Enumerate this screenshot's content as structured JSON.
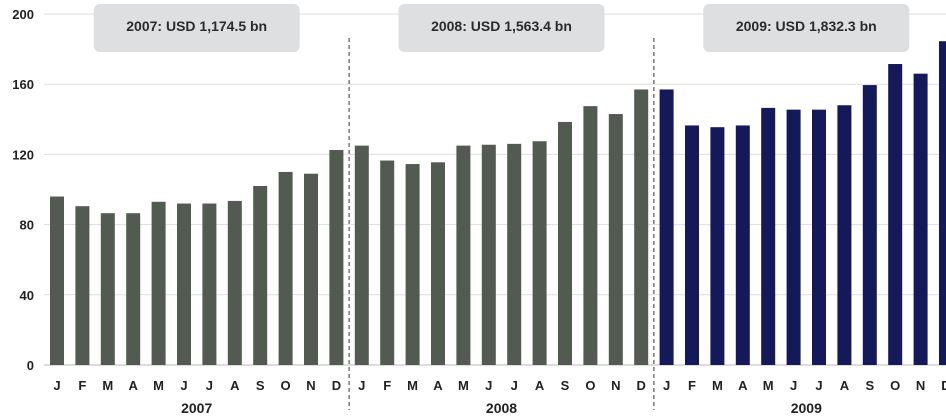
{
  "chart_data": {
    "type": "bar",
    "title": "",
    "xlabel": "",
    "ylabel": "",
    "ylim": [
      0,
      200
    ],
    "yticks": [
      0,
      40,
      80,
      120,
      160,
      200
    ],
    "grid": true,
    "colors": {
      "2007": "#525a52",
      "2008": "#525a52",
      "2009": "#14195a"
    },
    "groups": [
      {
        "year": "2007",
        "annotation": "2007: USD 1,174.5 bn",
        "months": [
          "J",
          "F",
          "M",
          "A",
          "M",
          "J",
          "J",
          "A",
          "S",
          "O",
          "N",
          "D"
        ],
        "values": [
          96,
          90.5,
          86.5,
          86.5,
          93,
          92,
          92,
          93.5,
          102,
          110,
          109,
          122.5
        ]
      },
      {
        "year": "2008",
        "annotation": "2008: USD 1,563.4 bn",
        "months": [
          "J",
          "F",
          "M",
          "A",
          "M",
          "J",
          "J",
          "A",
          "S",
          "O",
          "N",
          "D"
        ],
        "values": [
          125,
          116.5,
          114.5,
          115.5,
          125,
          125.5,
          126,
          127.5,
          138.5,
          147.5,
          143,
          157
        ]
      },
      {
        "year": "2009",
        "annotation": "2009: USD 1,832.3 bn",
        "months": [
          "J",
          "F",
          "M",
          "A",
          "M",
          "J",
          "J",
          "A",
          "S",
          "O",
          "N",
          "D"
        ],
        "values": [
          157,
          136.5,
          135.5,
          136.5,
          146.5,
          145.5,
          145.5,
          148,
          159.5,
          171.5,
          166,
          184.5
        ]
      }
    ]
  }
}
